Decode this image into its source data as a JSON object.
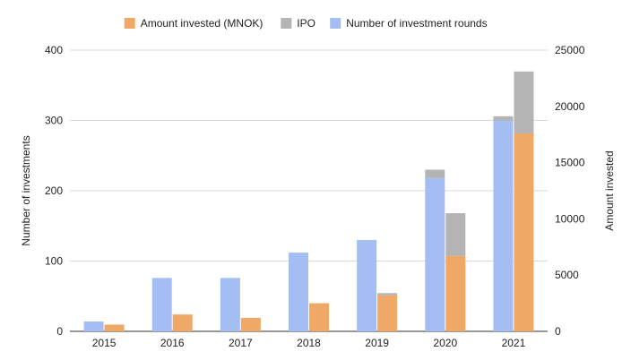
{
  "chart_data": {
    "type": "bar",
    "title": "",
    "categories": [
      "2015",
      "2016",
      "2017",
      "2018",
      "2019",
      "2020",
      "2021"
    ],
    "series": [
      {
        "name": "Number of investment rounds",
        "axis": "left",
        "stack": "rounds",
        "color": "#a4bdf3",
        "values": [
          14,
          76,
          76,
          112,
          130,
          218,
          300
        ]
      },
      {
        "name": "Amount invested (MNOK)",
        "axis": "right",
        "stack": "amount",
        "color": "#f0a867",
        "values": [
          600,
          1500,
          1200,
          2500,
          3200,
          6700,
          17600
        ]
      },
      {
        "name": "IPO",
        "axis": "both",
        "stack": "stacked-on-top",
        "color": "#b4b4b4",
        "values_left": [
          0,
          0,
          0,
          0,
          0,
          12,
          6
        ],
        "values_right": [
          0,
          0,
          0,
          0,
          200,
          3800,
          5500
        ]
      }
    ],
    "legend_order": [
      "Amount invested (MNOK)",
      "IPO",
      "Number of investment rounds"
    ],
    "legend_position": "top",
    "y_left": {
      "label": "Number of investments",
      "ylim": [
        0,
        400
      ],
      "ticks": [
        "0",
        "100",
        "200",
        "300",
        "400"
      ]
    },
    "y_right": {
      "label": "Amount invested",
      "ylim": [
        0,
        25000
      ],
      "ticks": [
        "0",
        "5000",
        "10000",
        "15000",
        "20000",
        "25000"
      ]
    },
    "grid": true
  }
}
